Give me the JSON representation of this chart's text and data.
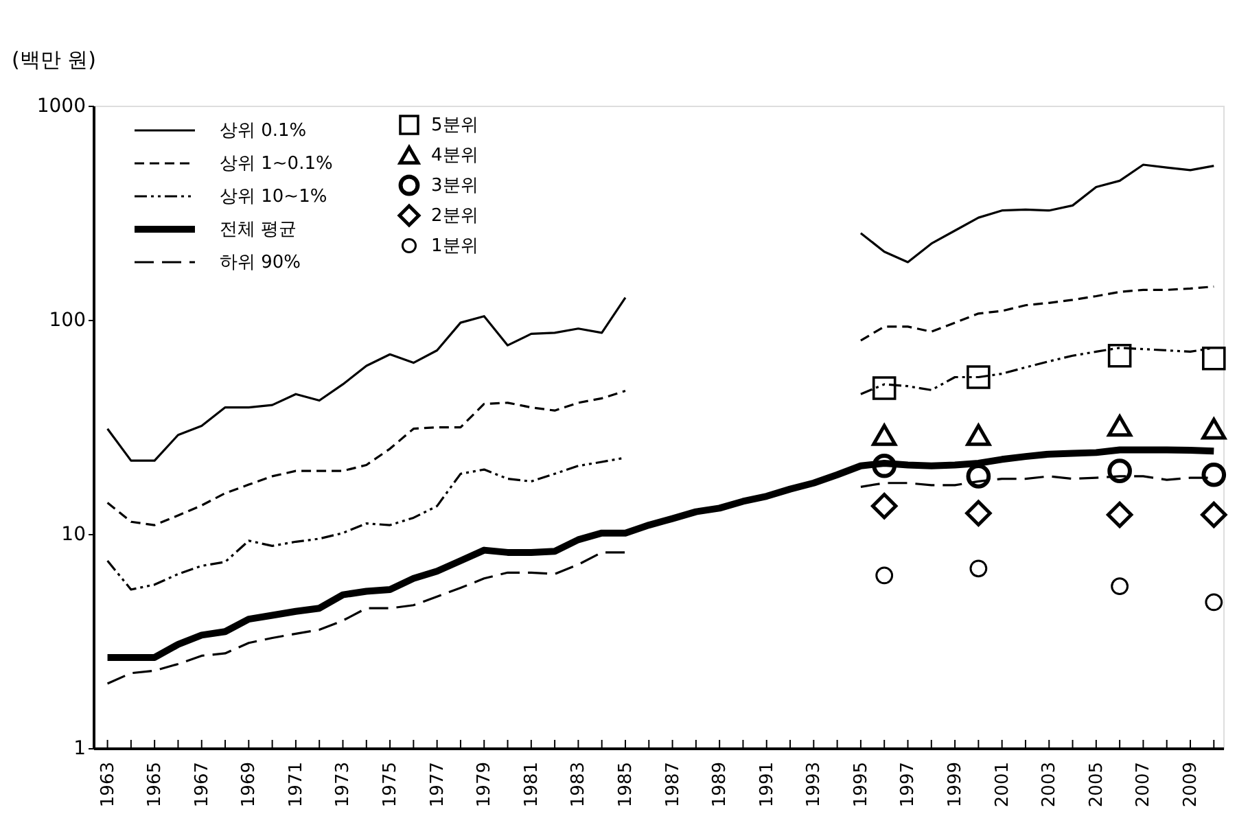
{
  "chart_data": {
    "type": "line",
    "ylabel": "(백만 원)",
    "log": "y",
    "grid": false,
    "legend": "top left",
    "x": [
      1963,
      1964,
      1965,
      1966,
      1967,
      1968,
      1969,
      1970,
      1971,
      1972,
      1973,
      1974,
      1975,
      1976,
      1977,
      1978,
      1979,
      1980,
      1981,
      1982,
      1983,
      1984,
      1985,
      1986,
      1987,
      1988,
      1989,
      1990,
      1991,
      1992,
      1993,
      1994,
      1995,
      1996,
      1997,
      1998,
      1999,
      2000,
      2001,
      2002,
      2003,
      2004,
      2005,
      2006,
      2007,
      2008,
      2009,
      2010
    ],
    "xlim": [
      1962.4,
      2010.4
    ],
    "xticks": [
      1963,
      {
        "value": 1964,
        "label": null
      },
      1965,
      {
        "value": 1966,
        "label": null
      },
      1967,
      {
        "value": 1968,
        "label": null
      },
      1969,
      {
        "value": 1970,
        "label": null
      },
      1971,
      {
        "value": 1972,
        "label": null
      },
      1973,
      {
        "value": 1974,
        "label": null
      },
      1975,
      {
        "value": 1976,
        "label": null
      },
      1977,
      {
        "value": 1978,
        "label": null
      },
      1979,
      {
        "value": 1980,
        "label": null
      },
      1981,
      {
        "value": 1982,
        "label": null
      },
      1983,
      {
        "value": 1984,
        "label": null
      },
      1985,
      {
        "value": 1986,
        "label": null
      },
      1987,
      {
        "value": 1988,
        "label": null
      },
      1989,
      {
        "value": 1990,
        "label": null
      },
      1991,
      {
        "value": 1992,
        "label": null
      },
      1993,
      {
        "value": 1994,
        "label": null
      },
      1995,
      {
        "value": 1996,
        "label": null
      },
      1997,
      {
        "value": 1998,
        "label": null
      },
      1999,
      {
        "value": 2000,
        "label": null
      },
      2001,
      {
        "value": 2002,
        "label": null
      },
      2003,
      {
        "value": 2004,
        "label": null
      },
      2005,
      {
        "value": 2006,
        "label": null
      },
      2007,
      {
        "value": 2008,
        "label": null
      },
      2009,
      {
        "value": 2010,
        "label": null
      }
    ],
    "ylim": [
      1,
      1000
    ],
    "yticks": [
      1,
      10,
      100,
      1000
    ],
    "series": [
      {
        "name": "상위 0.1%",
        "type": "line",
        "line_style": "solid",
        "color": "#000000",
        "values": [
          31,
          22,
          22,
          29,
          32,
          39,
          39,
          40,
          45,
          42,
          50,
          61,
          69,
          63,
          72,
          97,
          104,
          76,
          86,
          87,
          91,
          87,
          127,
          null,
          null,
          null,
          null,
          null,
          null,
          null,
          null,
          null,
          254,
          208,
          186,
          227,
          261,
          300,
          324,
          327,
          324,
          342,
          417,
          446,
          530,
          514,
          500,
          524
        ]
      },
      {
        "name": "상위 1~0.1%",
        "type": "line",
        "line_style": "dashed",
        "color": "#000000",
        "values": [
          14,
          11.4,
          11,
          12.2,
          13.6,
          15.5,
          17,
          18.6,
          19.7,
          19.7,
          19.7,
          21,
          25,
          31,
          31.5,
          31.5,
          40.5,
          41,
          39,
          37.7,
          41,
          43,
          46.6,
          null,
          null,
          null,
          null,
          null,
          null,
          null,
          null,
          null,
          80,
          93,
          93,
          88,
          97,
          107,
          110,
          117,
          120,
          124,
          129,
          135,
          138,
          138,
          140,
          143
        ]
      },
      {
        "name": "상위 10~1%",
        "type": "line",
        "line_style": "dashed",
        "color": "#000000",
        "values": [
          7.5,
          5.5,
          5.8,
          6.5,
          7.1,
          7.4,
          9.3,
          8.8,
          9.2,
          9.5,
          10.1,
          11.2,
          11,
          11.9,
          13.5,
          19.1,
          20,
          18.1,
          17.6,
          19.1,
          20.8,
          21.7,
          22.7,
          null,
          null,
          null,
          null,
          null,
          null,
          null,
          null,
          null,
          45,
          50,
          49,
          47,
          54,
          54,
          56,
          60,
          64,
          68,
          71,
          74,
          73,
          72,
          71,
          74
        ]
      },
      {
        "name": "전체 평균",
        "type": "line",
        "line_style": "solid",
        "color": "#000000",
        "values": [
          2.65,
          2.65,
          2.65,
          3.05,
          3.37,
          3.5,
          4.0,
          4.17,
          4.35,
          4.5,
          5.2,
          5.4,
          5.5,
          6.2,
          6.7,
          7.5,
          8.4,
          8.2,
          8.2,
          8.3,
          9.4,
          10.1,
          10.1,
          11,
          11.8,
          12.7,
          13.2,
          14.2,
          15,
          16.2,
          17.3,
          18.9,
          20.8,
          21.4,
          21,
          20.8,
          21,
          21.4,
          22.3,
          23,
          23.6,
          23.8,
          24,
          24.7,
          24.7,
          24.7,
          24.6,
          24.4
        ]
      },
      {
        "name": "하위 90%",
        "type": "line",
        "line_style": "dashed",
        "color": "#000000",
        "values": [
          2.0,
          2.24,
          2.3,
          2.47,
          2.7,
          2.77,
          3.1,
          3.27,
          3.42,
          3.57,
          3.94,
          4.5,
          4.5,
          4.65,
          5.1,
          5.6,
          6.2,
          6.6,
          6.6,
          6.5,
          7.2,
          8.2,
          8.2,
          null,
          null,
          null,
          null,
          null,
          null,
          null,
          null,
          null,
          16.6,
          17.3,
          17.3,
          16.9,
          16.9,
          17.6,
          18.1,
          18.1,
          18.6,
          18.1,
          18.3,
          18.6,
          18.6,
          17.9,
          18.3,
          18.3
        ]
      },
      {
        "name": "5분위",
        "type": "scatter",
        "marker": "square",
        "color": "#000000",
        "x": [
          1996,
          2000,
          2006,
          2010
        ],
        "values": [
          48,
          54,
          68,
          66
        ]
      },
      {
        "name": "4분위",
        "type": "scatter",
        "marker": "triangle",
        "color": "#000000",
        "x": [
          1996,
          2000,
          2006,
          2010
        ],
        "values": [
          29,
          29,
          32,
          31
        ]
      },
      {
        "name": "3분위",
        "type": "scatter",
        "marker": "circle",
        "color": "#000000",
        "x": [
          1996,
          2000,
          2006,
          2010
        ],
        "values": [
          20.8,
          18.6,
          19.7,
          18.9
        ]
      },
      {
        "name": "2분위",
        "type": "scatter",
        "marker": "diamond",
        "color": "#000000",
        "x": [
          1996,
          2000,
          2006,
          2010
        ],
        "values": [
          13.5,
          12.5,
          12.3,
          12.3
        ]
      },
      {
        "name": "1분위",
        "type": "scatter",
        "marker": "circle",
        "color": "#000000",
        "x": [
          1996,
          2000,
          2006,
          2010
        ],
        "values": [
          6.4,
          6.9,
          5.7,
          4.8
        ]
      }
    ]
  }
}
